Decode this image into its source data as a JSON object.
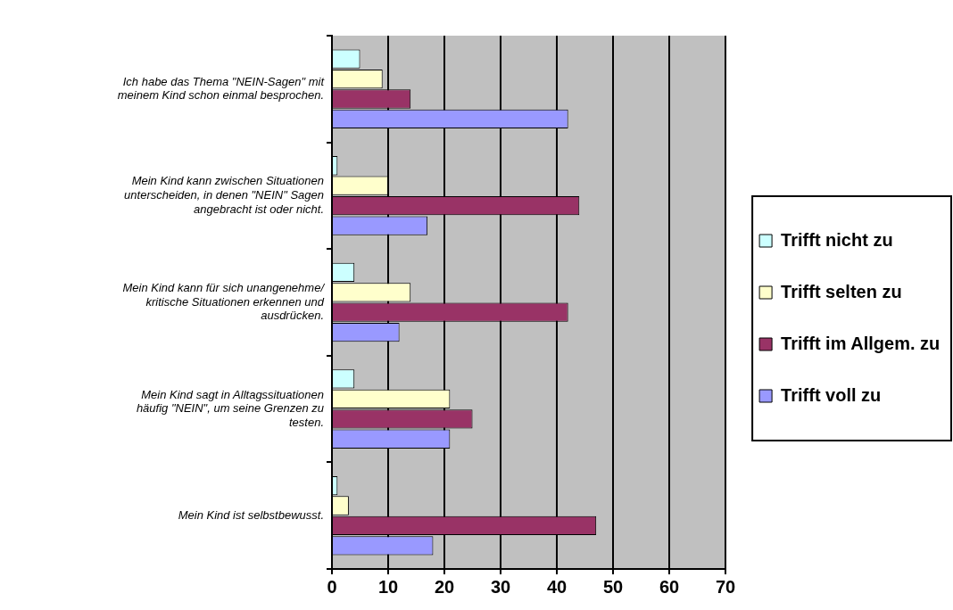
{
  "chart_data": {
    "type": "bar",
    "orientation": "horizontal",
    "categories": [
      "Ich habe das Thema \"NEIN-Sagen\" mit meinem Kind schon einmal besprochen.",
      "Mein Kind kann zwischen Situationen unterscheiden, in denen \"NEIN\" Sagen angebracht ist oder nicht.",
      "Mein Kind kann für sich unangenehme/ kritische Situationen erkennen und ausdrücken.",
      "Mein Kind sagt in Alltagssituationen häufig \"NEIN\", um seine Grenzen zu testen.",
      "Mein Kind ist selbstbewusst."
    ],
    "series": [
      {
        "name": "Trifft nicht zu",
        "color": "#ccffff",
        "values": [
          5,
          1,
          4,
          4,
          1
        ]
      },
      {
        "name": "Trifft selten zu",
        "color": "#ffffcc",
        "values": [
          9,
          10,
          14,
          21,
          3
        ]
      },
      {
        "name": "Trifft im Allgem. zu",
        "color": "#993366",
        "values": [
          14,
          44,
          42,
          25,
          47
        ]
      },
      {
        "name": "Trifft voll zu",
        "color": "#9999ff",
        "values": [
          42,
          17,
          12,
          21,
          18
        ]
      }
    ],
    "xlim": [
      0,
      70
    ],
    "xticks": [
      0,
      10,
      20,
      30,
      40,
      50,
      60,
      70
    ],
    "grid": "x",
    "legend": "right"
  }
}
